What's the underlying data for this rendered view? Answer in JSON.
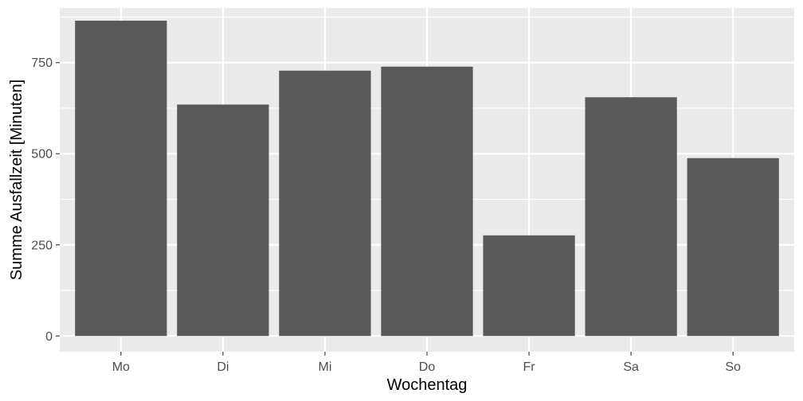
{
  "chart_data": {
    "type": "bar",
    "title": "",
    "xlabel": "Wochentag",
    "ylabel": "Summe Ausfallzeit [Minuten]",
    "categories": [
      "Mo",
      "Di",
      "Mi",
      "Do",
      "Fr",
      "Sa",
      "So"
    ],
    "values": [
      865,
      635,
      728,
      739,
      276,
      655,
      488
    ],
    "ylim": [
      -43,
      900
    ],
    "yticks": [
      0,
      250,
      500,
      750
    ],
    "ytick_labels": [
      "0",
      "250",
      "500",
      "750"
    ],
    "grid": true,
    "legend": "none",
    "colors": {
      "bar": "#595959",
      "panel": "#ebebeb",
      "grid": "#ffffff",
      "tick": "#333333",
      "tick_text": "#4d4d4d"
    }
  }
}
